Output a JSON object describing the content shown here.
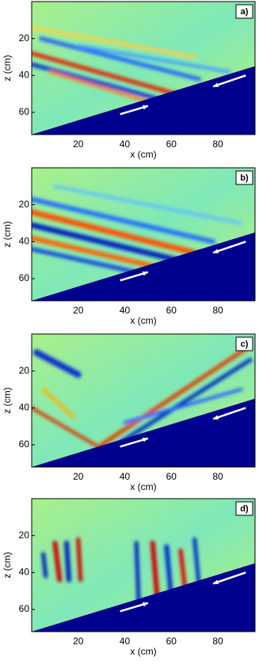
{
  "chart_data": [
    {
      "type": "image",
      "label": "a)",
      "xlabel": "x (cm)",
      "ylabel": "z (cm)",
      "xlim": [
        0,
        96
      ],
      "ylim": [
        72,
        0
      ],
      "xticks": [
        20,
        40,
        60,
        80
      ],
      "yticks": [
        20,
        40,
        60
      ]
    },
    {
      "type": "image",
      "label": "b)",
      "xlabel": "x (cm)",
      "ylabel": "z (cm)",
      "xlim": [
        0,
        96
      ],
      "ylim": [
        72,
        0
      ],
      "xticks": [
        20,
        40,
        60,
        80
      ],
      "yticks": [
        20,
        40,
        60
      ]
    },
    {
      "type": "image",
      "label": "c)",
      "xlabel": "x (cm)",
      "ylabel": "z (cm)",
      "xlim": [
        0,
        96
      ],
      "ylim": [
        72,
        0
      ],
      "xticks": [
        20,
        40,
        60,
        80
      ],
      "yticks": [
        20,
        40,
        60
      ]
    },
    {
      "type": "image",
      "label": "d)",
      "xlabel": "x (cm)",
      "ylabel": "z (cm)",
      "xlim": [
        0,
        96
      ],
      "ylim": [
        72,
        0
      ],
      "xticks": [
        20,
        40,
        60,
        80
      ],
      "yticks": [
        20,
        40,
        60
      ]
    }
  ]
}
